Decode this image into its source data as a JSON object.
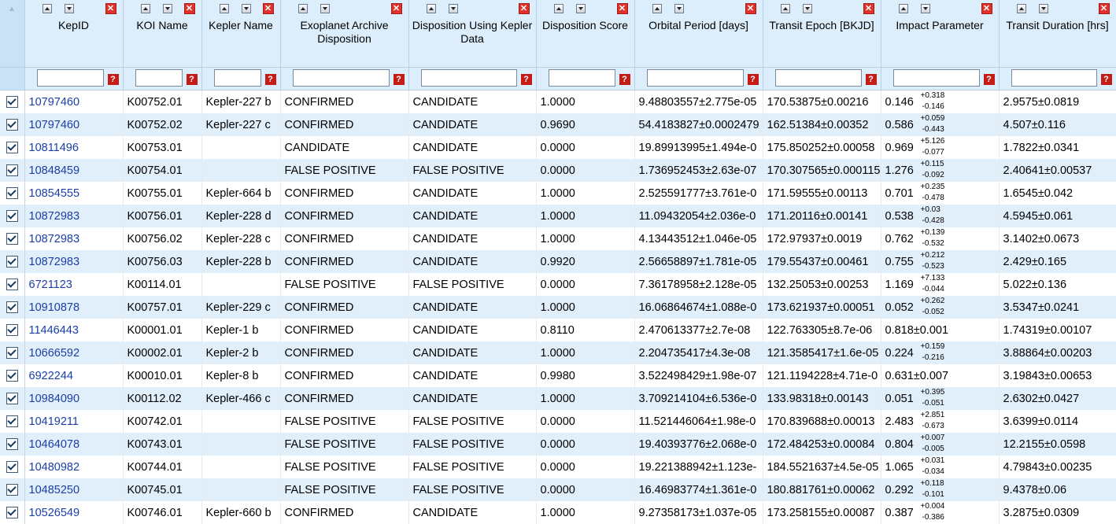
{
  "columns": [
    {
      "title": "KepID"
    },
    {
      "title": "KOI Name"
    },
    {
      "title": "Kepler Name"
    },
    {
      "title": "Exoplanet Archive Disposition"
    },
    {
      "title": "Disposition Using Kepler Data"
    },
    {
      "title": "Disposition Score"
    },
    {
      "title": "Orbital Period [days]"
    },
    {
      "title": "Transit Epoch [BKJD]"
    },
    {
      "title": "Impact Parameter"
    },
    {
      "title": "Transit Duration [hrs]"
    }
  ],
  "rows": [
    {
      "kepid": "10797460",
      "koi": "K00752.01",
      "kepler": "Kepler-227 b",
      "archive": "CONFIRMED",
      "kepdisp": "CANDIDATE",
      "score": "1.0000",
      "period": "9.48803557±2.775e-05",
      "epoch": "170.53875±0.00216",
      "impact": "0.146",
      "imp_up": "+0.318",
      "imp_dn": "-0.146",
      "duration": "2.9575±0.0819"
    },
    {
      "kepid": "10797460",
      "koi": "K00752.02",
      "kepler": "Kepler-227 c",
      "archive": "CONFIRMED",
      "kepdisp": "CANDIDATE",
      "score": "0.9690",
      "period": "54.4183827±0.0002479",
      "epoch": "162.51384±0.00352",
      "impact": "0.586",
      "imp_up": "+0.059",
      "imp_dn": "-0.443",
      "duration": "4.507±0.116"
    },
    {
      "kepid": "10811496",
      "koi": "K00753.01",
      "kepler": "",
      "archive": "CANDIDATE",
      "kepdisp": "CANDIDATE",
      "score": "0.0000",
      "period": "19.89913995±1.494e-0",
      "epoch": "175.850252±0.00058",
      "impact": "0.969",
      "imp_up": "+5.126",
      "imp_dn": "-0.077",
      "duration": "1.7822±0.0341"
    },
    {
      "kepid": "10848459",
      "koi": "K00754.01",
      "kepler": "",
      "archive": "FALSE POSITIVE",
      "kepdisp": "FALSE POSITIVE",
      "score": "0.0000",
      "period": "1.736952453±2.63e-07",
      "epoch": "170.307565±0.000115",
      "impact": "1.276",
      "imp_up": "+0.115",
      "imp_dn": "-0.092",
      "duration": "2.40641±0.00537"
    },
    {
      "kepid": "10854555",
      "koi": "K00755.01",
      "kepler": "Kepler-664 b",
      "archive": "CONFIRMED",
      "kepdisp": "CANDIDATE",
      "score": "1.0000",
      "period": "2.525591777±3.761e-0",
      "epoch": "171.59555±0.00113",
      "impact": "0.701",
      "imp_up": "+0.235",
      "imp_dn": "-0.478",
      "duration": "1.6545±0.042"
    },
    {
      "kepid": "10872983",
      "koi": "K00756.01",
      "kepler": "Kepler-228 d",
      "archive": "CONFIRMED",
      "kepdisp": "CANDIDATE",
      "score": "1.0000",
      "period": "11.09432054±2.036e-0",
      "epoch": "171.20116±0.00141",
      "impact": "0.538",
      "imp_up": "+0.03",
      "imp_dn": "-0.428",
      "duration": "4.5945±0.061"
    },
    {
      "kepid": "10872983",
      "koi": "K00756.02",
      "kepler": "Kepler-228 c",
      "archive": "CONFIRMED",
      "kepdisp": "CANDIDATE",
      "score": "1.0000",
      "period": "4.13443512±1.046e-05",
      "epoch": "172.97937±0.0019",
      "impact": "0.762",
      "imp_up": "+0.139",
      "imp_dn": "-0.532",
      "duration": "3.1402±0.0673"
    },
    {
      "kepid": "10872983",
      "koi": "K00756.03",
      "kepler": "Kepler-228 b",
      "archive": "CONFIRMED",
      "kepdisp": "CANDIDATE",
      "score": "0.9920",
      "period": "2.56658897±1.781e-05",
      "epoch": "179.55437±0.00461",
      "impact": "0.755",
      "imp_up": "+0.212",
      "imp_dn": "-0.523",
      "duration": "2.429±0.165"
    },
    {
      "kepid": "6721123",
      "koi": "K00114.01",
      "kepler": "",
      "archive": "FALSE POSITIVE",
      "kepdisp": "FALSE POSITIVE",
      "score": "0.0000",
      "period": "7.36178958±2.128e-05",
      "epoch": "132.25053±0.00253",
      "impact": "1.169",
      "imp_up": "+7.133",
      "imp_dn": "-0.044",
      "duration": "5.022±0.136"
    },
    {
      "kepid": "10910878",
      "koi": "K00757.01",
      "kepler": "Kepler-229 c",
      "archive": "CONFIRMED",
      "kepdisp": "CANDIDATE",
      "score": "1.0000",
      "period": "16.06864674±1.088e-0",
      "epoch": "173.621937±0.00051",
      "impact": "0.052",
      "imp_up": "+0.262",
      "imp_dn": "-0.052",
      "duration": "3.5347±0.0241"
    },
    {
      "kepid": "11446443",
      "koi": "K00001.01",
      "kepler": "Kepler-1 b",
      "archive": "CONFIRMED",
      "kepdisp": "CANDIDATE",
      "score": "0.8110",
      "period": "2.470613377±2.7e-08",
      "epoch": "122.763305±8.7e-06",
      "impact": "0.818±0.001",
      "imp_up": "",
      "imp_dn": "",
      "duration": "1.74319±0.00107"
    },
    {
      "kepid": "10666592",
      "koi": "K00002.01",
      "kepler": "Kepler-2 b",
      "archive": "CONFIRMED",
      "kepdisp": "CANDIDATE",
      "score": "1.0000",
      "period": "2.204735417±4.3e-08",
      "epoch": "121.3585417±1.6e-05",
      "impact": "0.224",
      "imp_up": "+0.159",
      "imp_dn": "-0.216",
      "duration": "3.88864±0.00203"
    },
    {
      "kepid": "6922244",
      "koi": "K00010.01",
      "kepler": "Kepler-8 b",
      "archive": "CONFIRMED",
      "kepdisp": "CANDIDATE",
      "score": "0.9980",
      "period": "3.522498429±1.98e-07",
      "epoch": "121.1194228±4.71e-0",
      "impact": "0.631±0.007",
      "imp_up": "",
      "imp_dn": "",
      "duration": "3.19843±0.00653"
    },
    {
      "kepid": "10984090",
      "koi": "K00112.02",
      "kepler": "Kepler-466 c",
      "archive": "CONFIRMED",
      "kepdisp": "CANDIDATE",
      "score": "1.0000",
      "period": "3.709214104±6.536e-0",
      "epoch": "133.98318±0.00143",
      "impact": "0.051",
      "imp_up": "+0.395",
      "imp_dn": "-0.051",
      "duration": "2.6302±0.0427"
    },
    {
      "kepid": "10419211",
      "koi": "K00742.01",
      "kepler": "",
      "archive": "FALSE POSITIVE",
      "kepdisp": "FALSE POSITIVE",
      "score": "0.0000",
      "period": "11.521446064±1.98e-0",
      "epoch": "170.839688±0.00013",
      "impact": "2.483",
      "imp_up": "+2.851",
      "imp_dn": "-0.673",
      "duration": "3.6399±0.0114"
    },
    {
      "kepid": "10464078",
      "koi": "K00743.01",
      "kepler": "",
      "archive": "FALSE POSITIVE",
      "kepdisp": "FALSE POSITIVE",
      "score": "0.0000",
      "period": "19.40393776±2.068e-0",
      "epoch": "172.484253±0.00084",
      "impact": "0.804",
      "imp_up": "+0.007",
      "imp_dn": "-0.005",
      "duration": "12.2155±0.0598"
    },
    {
      "kepid": "10480982",
      "koi": "K00744.01",
      "kepler": "",
      "archive": "FALSE POSITIVE",
      "kepdisp": "FALSE POSITIVE",
      "score": "0.0000",
      "period": "19.221388942±1.123e-",
      "epoch": "184.5521637±4.5e-05",
      "impact": "1.065",
      "imp_up": "+0.031",
      "imp_dn": "-0.034",
      "duration": "4.79843±0.00235"
    },
    {
      "kepid": "10485250",
      "koi": "K00745.01",
      "kepler": "",
      "archive": "FALSE POSITIVE",
      "kepdisp": "FALSE POSITIVE",
      "score": "0.0000",
      "period": "16.46983774±1.361e-0",
      "epoch": "180.881761±0.00062",
      "impact": "0.292",
      "imp_up": "+0.118",
      "imp_dn": "-0.101",
      "duration": "9.4378±0.06"
    },
    {
      "kepid": "10526549",
      "koi": "K00746.01",
      "kepler": "Kepler-660 b",
      "archive": "CONFIRMED",
      "kepdisp": "CANDIDATE",
      "score": "1.0000",
      "period": "9.27358173±1.037e-05",
      "epoch": "173.258155±0.00087",
      "impact": "0.387",
      "imp_up": "+0.004",
      "imp_dn": "-0.386",
      "duration": "3.2875±0.0309"
    }
  ],
  "icons": {
    "sort_up": "sort-ascending-icon",
    "sort_down": "sort-descending-icon",
    "remove": "close-icon",
    "help": "help-icon",
    "check": "checkbox-checked-icon"
  },
  "colors": {
    "header_bg": "#dceefb",
    "alt_row": "#e1effb",
    "link": "#1a3ea6",
    "remove_button": "#e0322a",
    "help_button": "#c41b14"
  }
}
